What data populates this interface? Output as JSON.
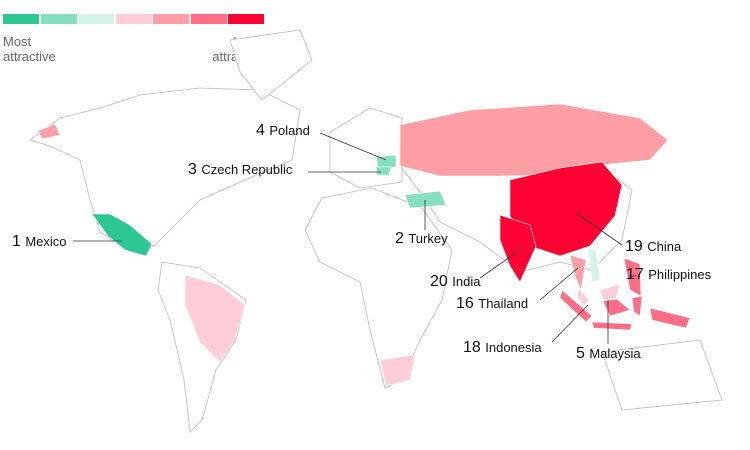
{
  "legend": {
    "colors": [
      "#2dc793",
      "#86e0c0",
      "#d4f4e7",
      "#ffcdd7",
      "#ff9ea5",
      "#ff6e86",
      "#ff0033"
    ],
    "low_label": "Most\nattractive",
    "high_label": "Least\nattractive"
  },
  "countries": [
    {
      "rank": "1",
      "name": "Mexico",
      "color": "#2dc793"
    },
    {
      "rank": "2",
      "name": "Turkey",
      "color": "#86e0c0"
    },
    {
      "rank": "3",
      "name": "Czech Republic",
      "color": "#86e0c0"
    },
    {
      "rank": "4",
      "name": "Poland",
      "color": "#86e0c0"
    },
    {
      "rank": "5",
      "name": "Malaysia",
      "color": "#ffcdd7"
    },
    {
      "rank": "16",
      "name": "Thailand",
      "color": "#ff9ea5"
    },
    {
      "rank": "17",
      "name": "Philippines",
      "color": "#ff6e86"
    },
    {
      "rank": "18",
      "name": "Indonesia",
      "color": "#ff6e86"
    },
    {
      "rank": "19",
      "name": "China",
      "color": "#ff0033"
    },
    {
      "rank": "20",
      "name": "India",
      "color": "#ff0033"
    }
  ],
  "unlabeled_colored": {
    "Russia": "#ff9ea5",
    "Brazil": "#ffcdd7",
    "South Africa": "#ffcdd7",
    "Alaska": "#ff9ea5",
    "Vietnam": "#d4f4e7"
  }
}
